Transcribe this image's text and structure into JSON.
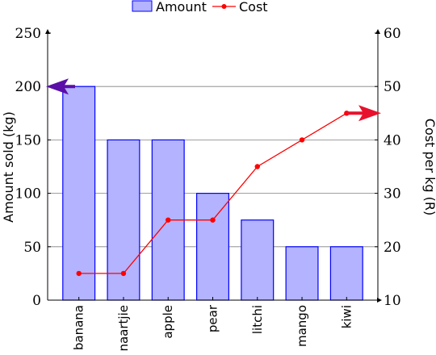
{
  "chart_data": {
    "type": "bar+line",
    "categories": [
      "banana",
      "naartjie",
      "apple",
      "pear",
      "litchi",
      "mango",
      "kiwi"
    ],
    "series": [
      {
        "name": "Amount",
        "type": "bar",
        "axis": "left",
        "values": [
          200,
          150,
          150,
          100,
          75,
          50,
          50
        ],
        "color": "#b3b3ff",
        "stroke": "#0000ff"
      },
      {
        "name": "Cost",
        "type": "line",
        "axis": "right",
        "values": [
          15,
          15,
          25,
          25,
          35,
          40,
          45
        ],
        "color": "#ff0000"
      }
    ],
    "ylabel_left": "Amount sold (kg)",
    "ylabel_right": "Cost per kg (R)",
    "ylim_left": [
      0,
      250
    ],
    "yticks_left": [
      0,
      50,
      100,
      150,
      200,
      250
    ],
    "ylim_right": [
      10,
      60
    ],
    "yticks_right": [
      10,
      20,
      30,
      40,
      50,
      60
    ],
    "grid": "horizontal",
    "legend": "top-center",
    "annotations": [
      {
        "type": "arrow",
        "axis": "left",
        "value": 200,
        "color": "#5b0fa8"
      },
      {
        "type": "arrow",
        "axis": "right",
        "value": 45,
        "color": "#e8112d"
      }
    ]
  }
}
